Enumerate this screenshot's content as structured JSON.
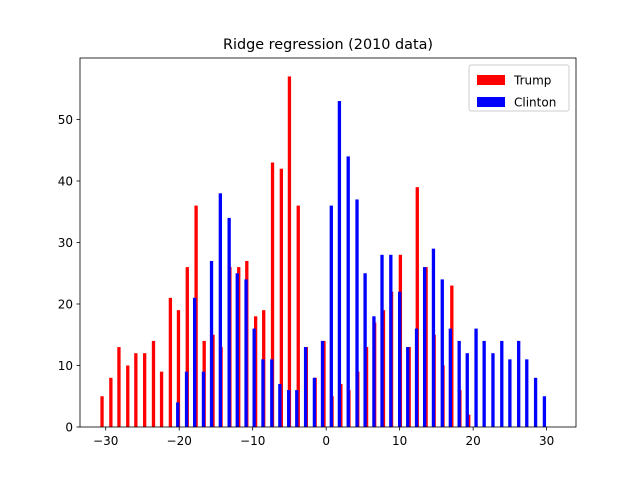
{
  "chart_data": {
    "type": "bar",
    "title": "Ridge regression (2010 data)",
    "xlabel": "",
    "ylabel": "",
    "xlim": [
      -33.5,
      34
    ],
    "ylim": [
      0,
      60
    ],
    "xticks": [
      -30,
      -20,
      -10,
      0,
      10,
      20,
      30
    ],
    "yticks": [
      0,
      10,
      20,
      30,
      40,
      50
    ],
    "grid": false,
    "legend_position": "top-right",
    "bar_width": 0.45,
    "series": [
      {
        "name": "Trump",
        "color": "#ff0000",
        "points": [
          [
            -30.5,
            5
          ],
          [
            -29.3,
            8
          ],
          [
            -28.2,
            13
          ],
          [
            -27.0,
            10
          ],
          [
            -25.9,
            12
          ],
          [
            -24.7,
            12
          ],
          [
            -23.5,
            14
          ],
          [
            -22.4,
            9
          ],
          [
            -21.2,
            21
          ],
          [
            -20.1,
            19
          ],
          [
            -18.9,
            26
          ],
          [
            -17.7,
            36
          ],
          [
            -16.6,
            14
          ],
          [
            -15.4,
            15
          ],
          [
            -14.3,
            13
          ],
          [
            -13.1,
            26
          ],
          [
            -11.9,
            26
          ],
          [
            -10.8,
            27
          ],
          [
            -9.6,
            18
          ],
          [
            -8.5,
            19
          ],
          [
            -7.3,
            43
          ],
          [
            -6.1,
            42
          ],
          [
            -5.0,
            57
          ],
          [
            -3.8,
            36
          ],
          [
            -2.7,
            13
          ],
          [
            -1.5,
            8
          ],
          [
            -0.3,
            14
          ],
          [
            0.8,
            5
          ],
          [
            2.0,
            7
          ],
          [
            3.1,
            6
          ],
          [
            4.3,
            9
          ],
          [
            5.5,
            13
          ],
          [
            6.6,
            17
          ],
          [
            7.8,
            19
          ],
          [
            8.9,
            22
          ],
          [
            10.1,
            28
          ],
          [
            11.3,
            13
          ],
          [
            12.4,
            39
          ],
          [
            13.6,
            26
          ],
          [
            14.7,
            15
          ],
          [
            15.9,
            10
          ],
          [
            17.1,
            23
          ],
          [
            18.2,
            6
          ],
          [
            19.4,
            2
          ]
        ]
      },
      {
        "name": "Clinton",
        "color": "#0000ff",
        "points": [
          [
            -20.2,
            4
          ],
          [
            -19.0,
            9
          ],
          [
            -17.9,
            21
          ],
          [
            -16.7,
            9
          ],
          [
            -15.6,
            27
          ],
          [
            -14.4,
            38
          ],
          [
            -13.2,
            34
          ],
          [
            -12.1,
            25
          ],
          [
            -10.9,
            24
          ],
          [
            -9.8,
            16
          ],
          [
            -8.6,
            11
          ],
          [
            -7.4,
            11
          ],
          [
            -6.3,
            7
          ],
          [
            -5.1,
            6
          ],
          [
            -4.0,
            6
          ],
          [
            -2.8,
            13
          ],
          [
            -1.6,
            8
          ],
          [
            -0.5,
            14
          ],
          [
            0.7,
            36
          ],
          [
            1.8,
            53
          ],
          [
            3.0,
            44
          ],
          [
            4.2,
            37
          ],
          [
            5.3,
            25
          ],
          [
            6.5,
            18
          ],
          [
            7.6,
            28
          ],
          [
            8.8,
            28
          ],
          [
            10.0,
            22
          ],
          [
            11.1,
            13
          ],
          [
            12.3,
            16
          ],
          [
            13.4,
            26
          ],
          [
            14.6,
            29
          ],
          [
            15.8,
            24
          ],
          [
            16.9,
            16
          ],
          [
            18.1,
            14
          ],
          [
            19.2,
            12
          ],
          [
            20.4,
            16
          ],
          [
            21.5,
            14
          ],
          [
            22.7,
            12
          ],
          [
            23.9,
            14
          ],
          [
            25.0,
            11
          ],
          [
            26.2,
            14
          ],
          [
            27.3,
            11
          ],
          [
            28.5,
            8
          ],
          [
            29.7,
            5
          ]
        ]
      }
    ]
  }
}
